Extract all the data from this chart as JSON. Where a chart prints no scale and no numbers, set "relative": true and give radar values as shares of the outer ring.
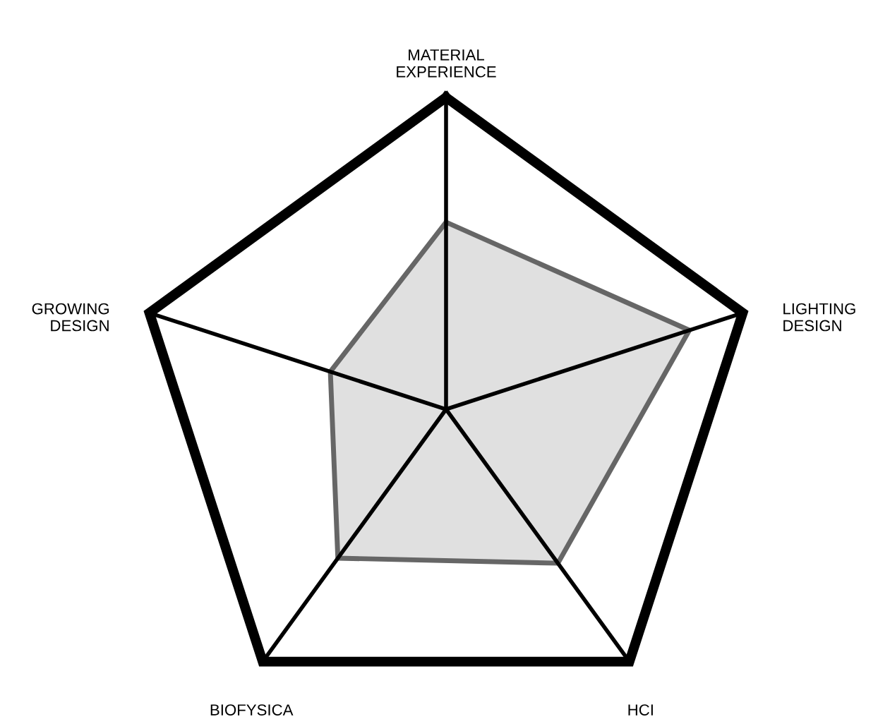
{
  "chart_data": {
    "type": "radar",
    "relative": true,
    "categories": [
      "MATERIAL\nEXPERIENCE",
      "LIGHTING\nDESIGN",
      "HCI",
      "BIOFYSICA",
      "GROWING\nDESIGN"
    ],
    "series": [
      {
        "color": "#666666",
        "values": [
          0.6,
          0.82,
          0.61,
          0.59,
          0.39
        ]
      }
    ]
  }
}
